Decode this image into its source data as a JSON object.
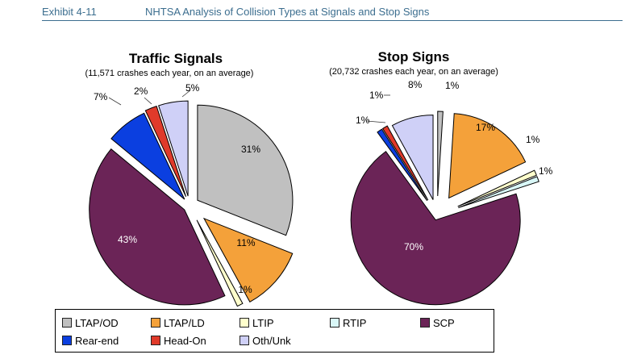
{
  "header": {
    "exhibit": "Exhibit 4-11",
    "title": "NHTSA Analysis of Collision Types at Signals and Stop Signs"
  },
  "colors": {
    "LTAP/OD": "#c0c0c0",
    "LTAP/LD": "#f4a13a",
    "LTIP": "#ffffcc",
    "RTIP": "#d9f7f7",
    "SCP": "#6b2457",
    "Rear-end": "#0b3fe0",
    "Head-On": "#e03a2a",
    "Oth/Unk": "#cfd0f7"
  },
  "legend": {
    "items": [
      "LTAP/OD",
      "LTAP/LD",
      "LTIP",
      "RTIP",
      "SCP",
      "Rear-end",
      "Head-On",
      "Oth/Unk"
    ]
  },
  "chart_data": [
    {
      "type": "pie",
      "title": "Traffic Signals",
      "subtitle": "(11,571 crashes each year, on an average)",
      "categories": [
        "LTAP/OD",
        "LTAP/LD",
        "LTIP",
        "SCP",
        "Rear-end",
        "Head-On",
        "Oth/Unk"
      ],
      "values": [
        31,
        11,
        1,
        43,
        7,
        2,
        5
      ],
      "labels": [
        "31%",
        "11%",
        "1%",
        "43%",
        "7%",
        "2%",
        "5%"
      ]
    },
    {
      "type": "pie",
      "title": "Stop Signs",
      "subtitle": "(20,732 crashes each year, on an average)",
      "categories": [
        "LTAP/OD",
        "LTAP/LD",
        "LTIP",
        "RTIP",
        "SCP",
        "Rear-end",
        "Head-On",
        "Oth/Unk"
      ],
      "values": [
        1,
        17,
        1,
        1,
        70,
        1,
        1,
        8
      ],
      "labels": [
        "1%",
        "17%",
        "1%",
        "1%",
        "70%",
        "1%",
        "1%",
        "8%"
      ]
    }
  ]
}
